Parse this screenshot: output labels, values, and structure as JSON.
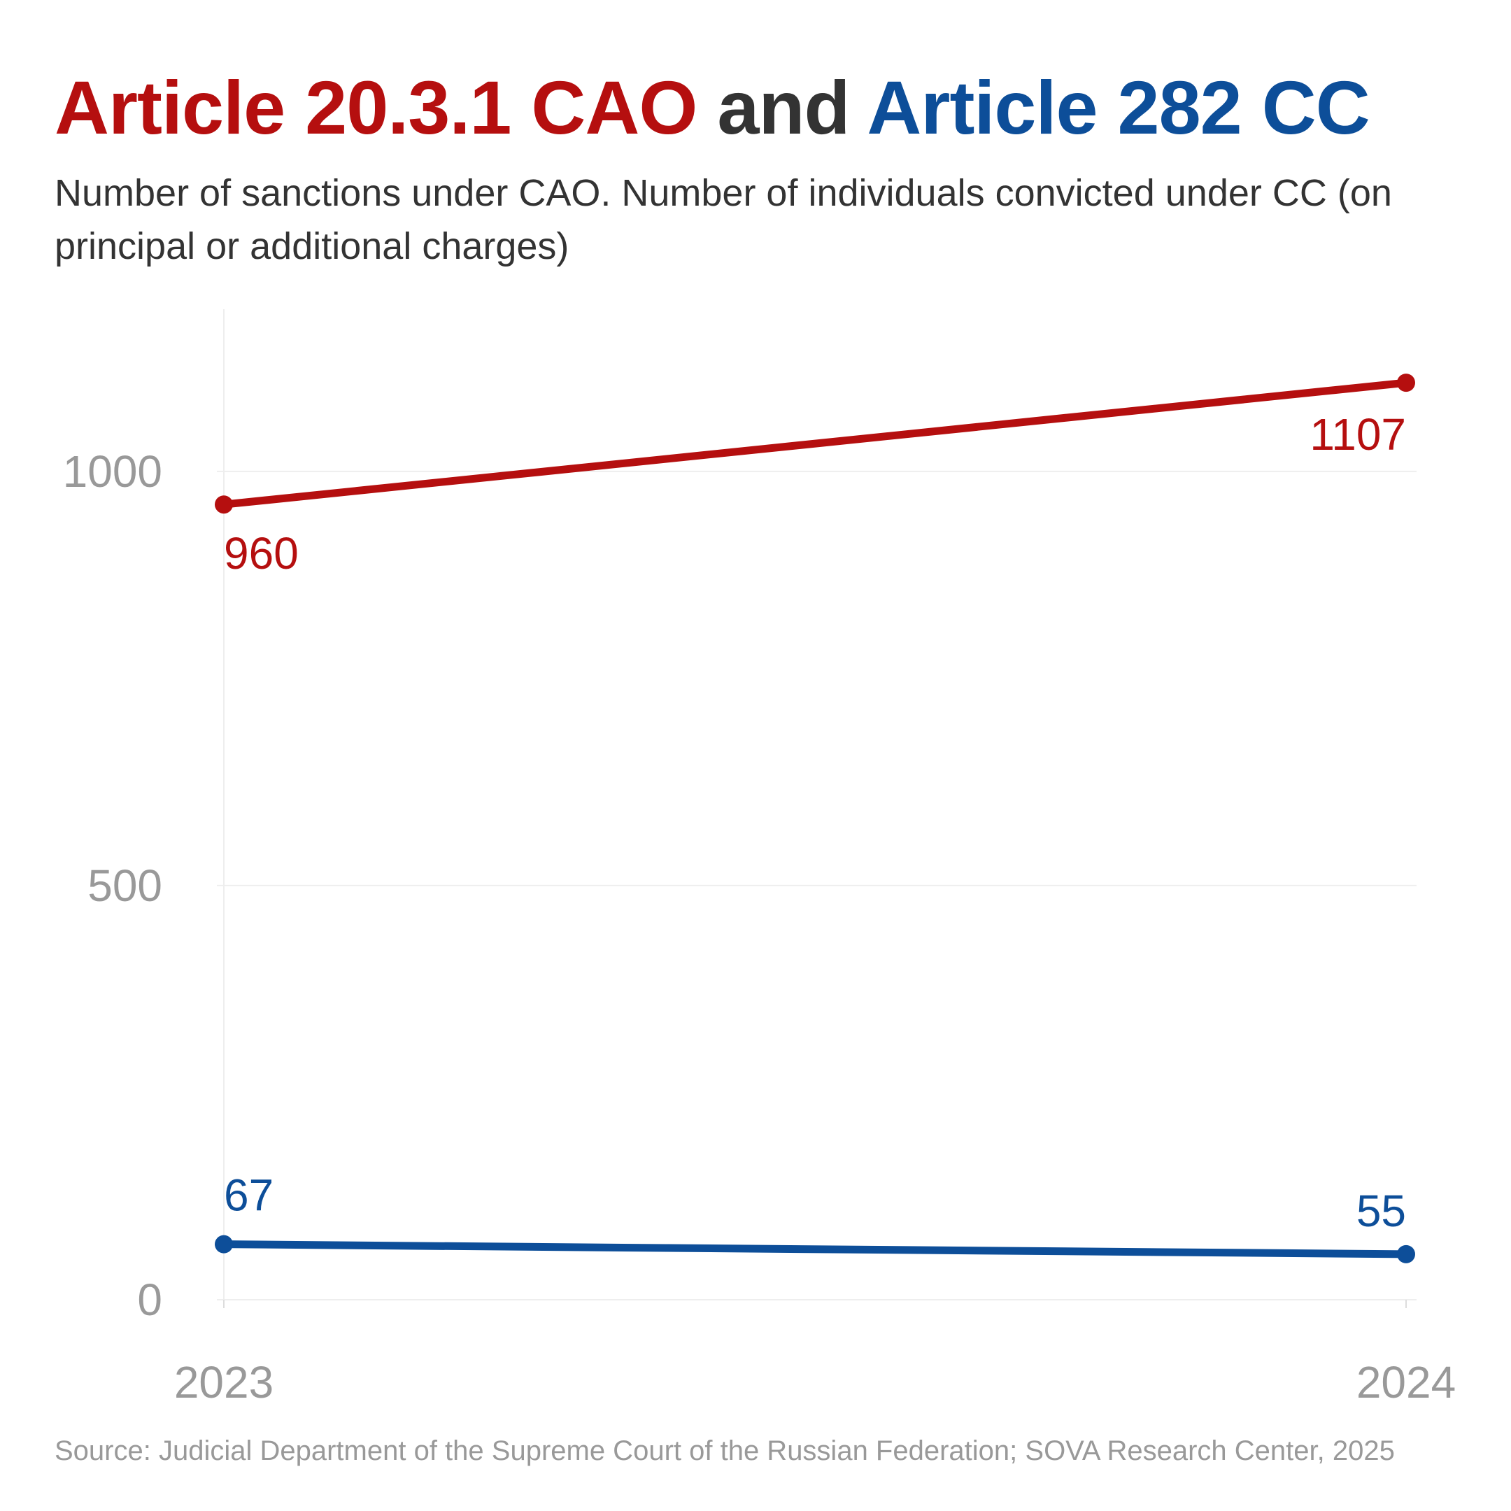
{
  "header": {
    "title_part1": "Article 20.3.1 CAO",
    "title_part2": " and ",
    "title_part3": "Article 282 CC",
    "subtitle": "Number of sanctions under CAO. Number of individuals convicted under CC (on principal or additional charges)"
  },
  "footer": {
    "source": "Source: Judicial Department of the Supreme Court of the Russian Federation; SOVA Research Center, 2025"
  },
  "colors": {
    "red": "#b50f0f",
    "blue": "#0d4e99",
    "dark": "#333333",
    "grey": "#999999",
    "grid": "#eeeeee"
  },
  "chart_data": {
    "type": "line",
    "title": "Article 20.3.1 CAO and Article 282 CC",
    "subtitle": "Number of sanctions under CAO. Number of individuals convicted under CC (on principal or additional charges)",
    "x": [
      "2023",
      "2024"
    ],
    "ylim": [
      0,
      1200
    ],
    "yticks": [
      0,
      500,
      1000
    ],
    "grid": true,
    "series": [
      {
        "values": [
          960,
          1107
        ],
        "color": "#b50f0f",
        "labels": [
          "960",
          "1107"
        ]
      },
      {
        "values": [
          67,
          55
        ],
        "color": "#0d4e99",
        "labels": [
          "67",
          "55"
        ]
      }
    ]
  }
}
